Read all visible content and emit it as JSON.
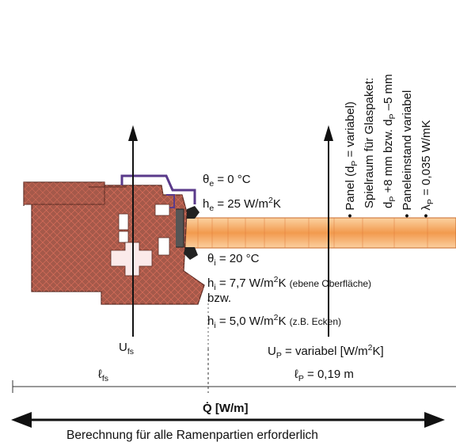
{
  "external": {
    "theta": "θ",
    "theta_sub": "e",
    "theta_val": " = 0 °C",
    "h": "h",
    "h_sub": "e",
    "h_val": " = 25 W/m",
    "h_unit_tail": "K"
  },
  "internal": {
    "theta": "θ",
    "theta_sub": "i",
    "theta_val": " = 20 °C",
    "h1": "h",
    "h1_sub": "i",
    "h1_val": " = 7,7 W/m",
    "h1_tail": "K",
    "h1_note": "(ebene Oberfläche)",
    "bzw": "bzw.",
    "h2": "h",
    "h2_sub": "i",
    "h2_val": " = 5,0 W/m",
    "h2_tail": "K",
    "h2_note": "(z.B. Ecken)"
  },
  "sup2": "2",
  "u_fs": {
    "main": "U",
    "sub": "fs"
  },
  "u_p": {
    "main": "U",
    "sub": "P",
    "rest": " = variabel [W/m",
    "tail": "K]"
  },
  "l_fs": {
    "main": "ℓ",
    "sub": "fs"
  },
  "l_p": {
    "main": "ℓ",
    "sub": "P",
    "rest": " = 0,19 m"
  },
  "q": {
    "symbol": "Q̇",
    "unit": " [W/m]"
  },
  "footer": "Berechnung für alle Ramenpartien erforderlich",
  "panel_notes": {
    "l1_bullet": "• ",
    "l1": "Panel (d",
    "l1_sub": "P",
    "l1_tail": " = variabel)",
    "l2": "Spielraum für Glaspaket:",
    "l3": "d",
    "l3_sub": "P",
    "l3_tail": " +8 mm bzw. d",
    "l3_sub2": "P",
    "l3_tail2": " –5 mm",
    "l4_bullet": "• ",
    "l4": "Paneleinstand  variabel",
    "l5_bullet": "• ",
    "l5": "λ",
    "l5_sub": "P",
    "l5_tail": " = 0,035 W/mK"
  },
  "colors": {
    "wood": "#a5594a",
    "panel": "#f4a15a",
    "frame_line": "#5a3a8a",
    "mesh": "#e46a5a",
    "arrow": "#111111"
  }
}
